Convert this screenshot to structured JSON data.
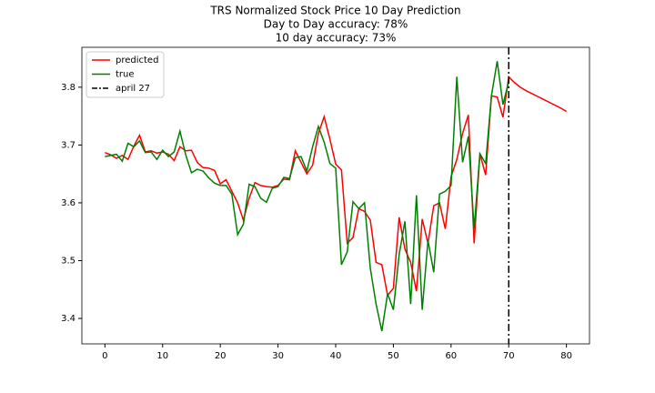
{
  "chart_data": {
    "type": "line",
    "title": [
      "TRS Normalized Stock Price 10 Day Prediction",
      "Day to Day accuracy: 78%",
      "10 day accuracy: 73%"
    ],
    "x": [
      0,
      1,
      2,
      3,
      4,
      5,
      6,
      7,
      8,
      9,
      10,
      11,
      12,
      13,
      14,
      15,
      16,
      17,
      18,
      19,
      20,
      21,
      22,
      23,
      24,
      25,
      26,
      27,
      28,
      29,
      30,
      31,
      32,
      33,
      34,
      35,
      36,
      37,
      38,
      39,
      40,
      41,
      42,
      43,
      44,
      45,
      46,
      47,
      48,
      49,
      50,
      51,
      52,
      53,
      54,
      55,
      56,
      57,
      58,
      59,
      60,
      61,
      62,
      63,
      64,
      65,
      66,
      67,
      68,
      69,
      70,
      71,
      72,
      73,
      74,
      75,
      76,
      77,
      78,
      79,
      80
    ],
    "series": [
      {
        "name": "predicted",
        "color": "#ff0000",
        "values": [
          3.687,
          3.683,
          3.677,
          3.682,
          3.675,
          3.698,
          3.717,
          3.688,
          3.69,
          3.686,
          3.688,
          3.684,
          3.673,
          3.697,
          3.69,
          3.691,
          3.67,
          3.661,
          3.66,
          3.656,
          3.633,
          3.64,
          3.62,
          3.6,
          3.57,
          3.608,
          3.635,
          3.63,
          3.628,
          3.627,
          3.63,
          3.641,
          3.64,
          3.69,
          3.67,
          3.65,
          3.665,
          3.72,
          3.749,
          3.71,
          3.667,
          3.657,
          3.53,
          3.54,
          3.59,
          3.585,
          3.57,
          3.497,
          3.493,
          3.44,
          3.452,
          3.575,
          3.52,
          3.497,
          3.447,
          3.572,
          3.53,
          3.595,
          3.6,
          3.555,
          3.645,
          3.675,
          3.72,
          3.752,
          3.53,
          3.685,
          3.648,
          3.785,
          3.783,
          3.748,
          3.818,
          3.808,
          3.8,
          3.794,
          3.789,
          3.784,
          3.779,
          3.774,
          3.769,
          3.764,
          3.758
        ]
      },
      {
        "name": "true",
        "color": "#008000",
        "values": [
          3.68,
          3.682,
          3.684,
          3.672,
          3.703,
          3.697,
          3.707,
          3.687,
          3.688,
          3.675,
          3.691,
          3.68,
          3.688,
          3.724,
          3.683,
          3.652,
          3.658,
          3.655,
          3.643,
          3.634,
          3.63,
          3.63,
          3.615,
          3.545,
          3.563,
          3.632,
          3.628,
          3.608,
          3.601,
          3.625,
          3.628,
          3.644,
          3.642,
          3.678,
          3.68,
          3.655,
          3.697,
          3.732,
          3.705,
          3.668,
          3.66,
          3.493,
          3.515,
          3.602,
          3.59,
          3.6,
          3.487,
          3.425,
          3.378,
          3.443,
          3.415,
          3.51,
          3.568,
          3.425,
          3.613,
          3.415,
          3.535,
          3.48,
          3.615,
          3.62,
          3.63,
          3.818,
          3.67,
          3.715,
          3.555,
          3.685,
          3.668,
          3.785,
          3.845,
          3.77,
          3.81,
          null,
          null,
          null,
          null,
          null,
          null,
          null,
          null,
          null,
          null
        ]
      }
    ],
    "vline": {
      "x": 70,
      "label": "april 27",
      "color": "#000000"
    },
    "xlim": [
      -4,
      84
    ],
    "xticks": [
      0,
      10,
      20,
      30,
      40,
      50,
      60,
      70,
      80
    ],
    "ylim": [
      3.356,
      3.869
    ],
    "yticks": [
      3.4,
      3.5,
      3.6,
      3.7,
      3.8
    ],
    "legend": "upper left"
  }
}
